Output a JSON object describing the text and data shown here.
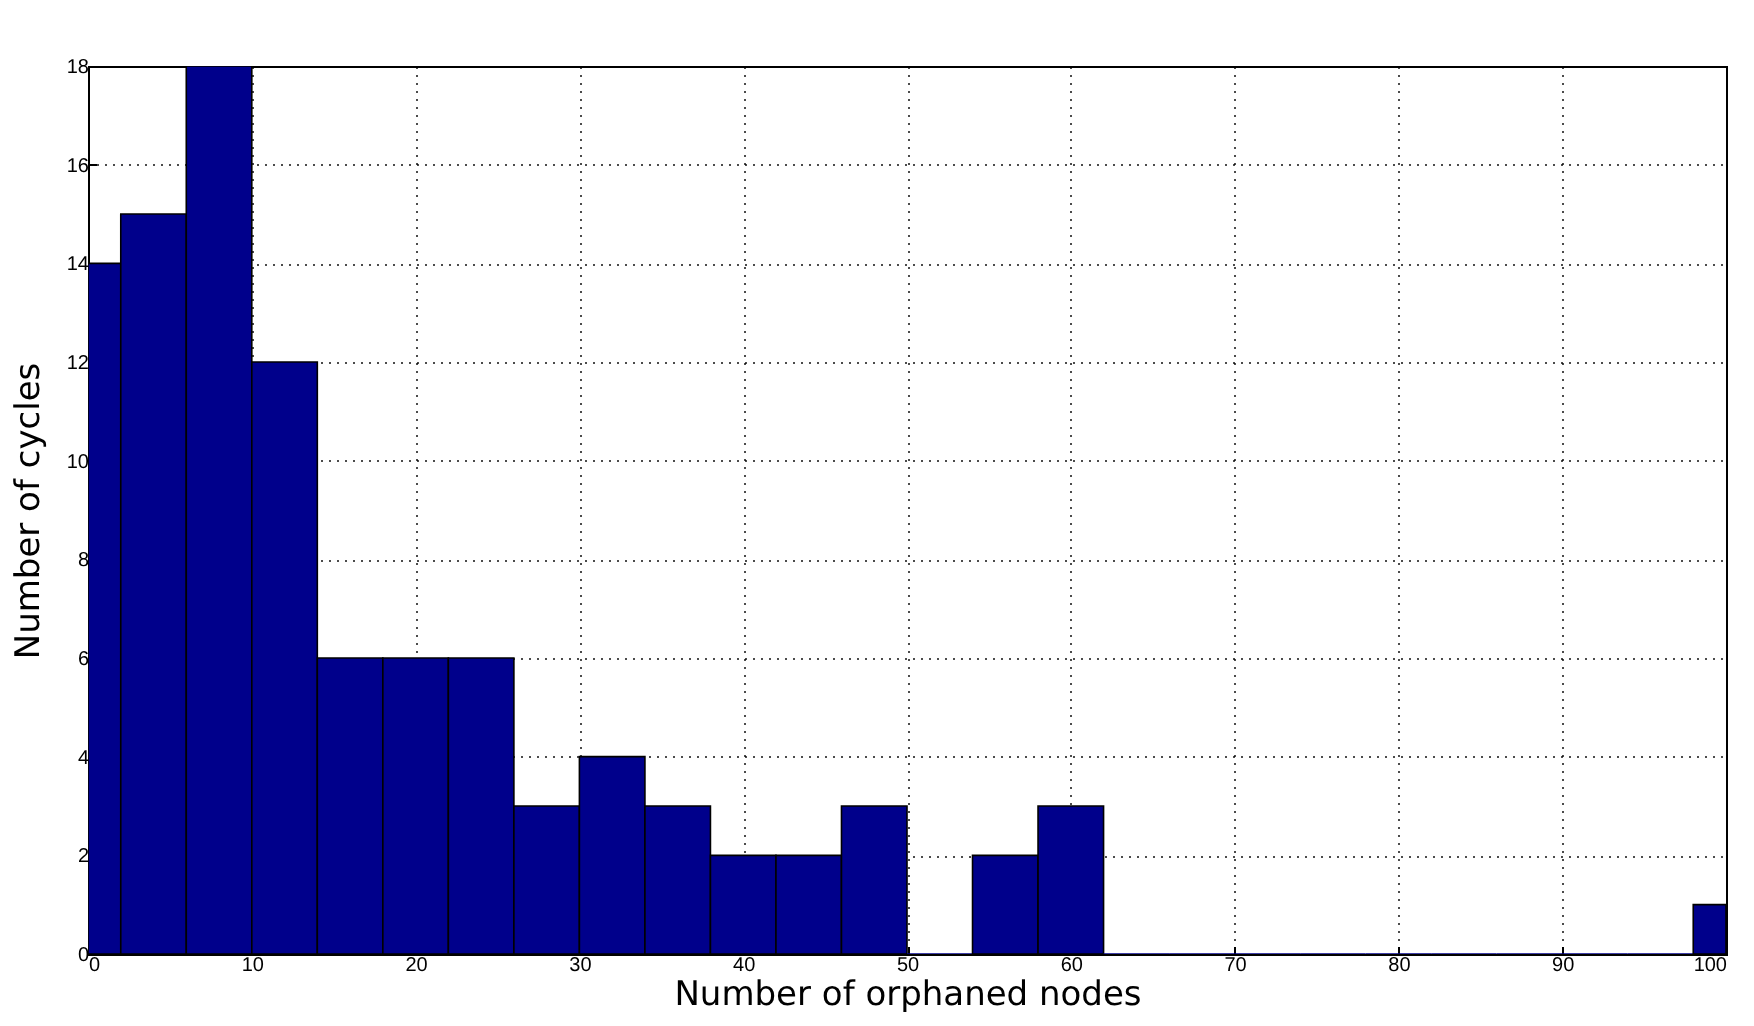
{
  "chart_data": {
    "type": "histogram",
    "xlabel": "Number of orphaned nodes",
    "ylabel": "Number of cycles",
    "bins": [
      0,
      2,
      6,
      10,
      14,
      18,
      22,
      26,
      30,
      34,
      38,
      42,
      46,
      50,
      54,
      58,
      62,
      66,
      70,
      74,
      78,
      82,
      86,
      90,
      94,
      98,
      100
    ],
    "values": [
      14,
      15,
      18,
      12,
      6,
      6,
      6,
      3,
      4,
      3,
      2,
      2,
      3,
      0,
      2,
      3,
      0,
      0,
      0,
      0,
      0,
      0,
      0,
      0,
      0,
      1
    ],
    "color": "#00008b",
    "xlim": [
      0,
      100
    ],
    "xticks": [
      0,
      10,
      20,
      30,
      40,
      50,
      60,
      70,
      80,
      90,
      100
    ],
    "ylim": [
      0,
      18
    ],
    "yticks": [
      0,
      2,
      4,
      6,
      8,
      10,
      12,
      14,
      16,
      18
    ],
    "grid": true
  }
}
